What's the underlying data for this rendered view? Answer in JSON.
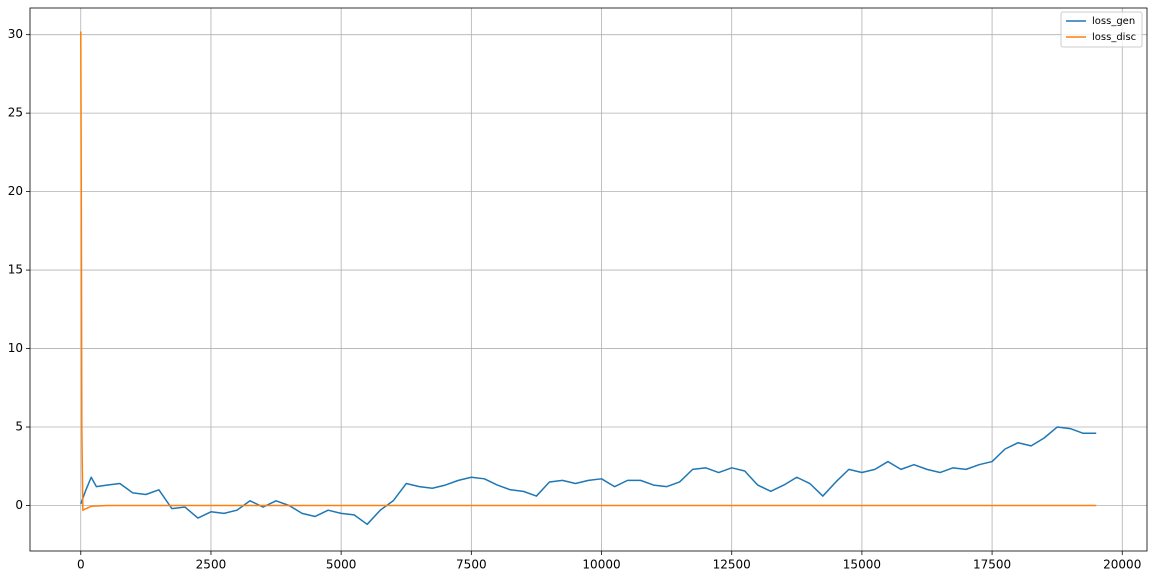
{
  "chart_data": {
    "type": "line",
    "grid": true,
    "legend": "upper right",
    "xlim": [
      -975,
      20475
    ],
    "ylim": [
      -2.9,
      31.7
    ],
    "xticks": [
      0,
      2500,
      5000,
      7500,
      10000,
      12500,
      15000,
      17500,
      20000
    ],
    "yticks": [
      0,
      5,
      10,
      15,
      20,
      25,
      30
    ],
    "series": [
      {
        "name": "loss_gen",
        "color": "#1f77b4",
        "x": [
          0,
          100,
          200,
          300,
          500,
          750,
          1000,
          1250,
          1500,
          1750,
          2000,
          2250,
          2500,
          2750,
          3000,
          3250,
          3500,
          3750,
          4000,
          4250,
          4500,
          4750,
          5000,
          5250,
          5500,
          5750,
          6000,
          6250,
          6500,
          6750,
          7000,
          7250,
          7500,
          7750,
          8000,
          8250,
          8500,
          8750,
          9000,
          9250,
          9500,
          9750,
          10000,
          10250,
          10500,
          10750,
          11000,
          11250,
          11500,
          11750,
          12000,
          12250,
          12500,
          12750,
          13000,
          13250,
          13500,
          13750,
          14000,
          14250,
          14500,
          14750,
          15000,
          15250,
          15500,
          15750,
          16000,
          16250,
          16500,
          16750,
          17000,
          17250,
          17500,
          17750,
          18000,
          18250,
          18500,
          18750,
          19000,
          19250,
          19500
        ],
        "values": [
          0.1,
          1.0,
          1.8,
          1.2,
          1.3,
          1.4,
          0.8,
          0.7,
          1.0,
          -0.2,
          -0.1,
          -0.8,
          -0.4,
          -0.5,
          -0.3,
          0.3,
          -0.1,
          0.3,
          0.0,
          -0.5,
          -0.7,
          -0.3,
          -0.5,
          -0.6,
          -1.2,
          -0.3,
          0.3,
          1.4,
          1.2,
          1.1,
          1.3,
          1.6,
          1.8,
          1.7,
          1.3,
          1.0,
          0.9,
          0.6,
          1.5,
          1.6,
          1.4,
          1.6,
          1.7,
          1.2,
          1.6,
          1.6,
          1.3,
          1.2,
          1.5,
          2.3,
          2.4,
          2.1,
          2.4,
          2.2,
          1.3,
          0.9,
          1.3,
          1.8,
          1.4,
          0.6,
          1.5,
          2.3,
          2.1,
          2.3,
          2.8,
          2.3,
          2.6,
          2.3,
          2.1,
          2.4,
          2.3,
          2.6,
          2.8,
          3.6,
          4.0,
          3.8,
          4.3,
          5.0,
          4.9,
          4.6,
          4.6
        ]
      },
      {
        "name": "loss_disc",
        "color": "#ff7f0e",
        "x": [
          0,
          10,
          20,
          40,
          100,
          200,
          500,
          2000,
          5000,
          10000,
          15000,
          19500
        ],
        "values": [
          30.2,
          20,
          5,
          -0.3,
          -0.2,
          -0.05,
          0,
          0,
          0,
          0,
          0,
          0
        ]
      }
    ]
  }
}
